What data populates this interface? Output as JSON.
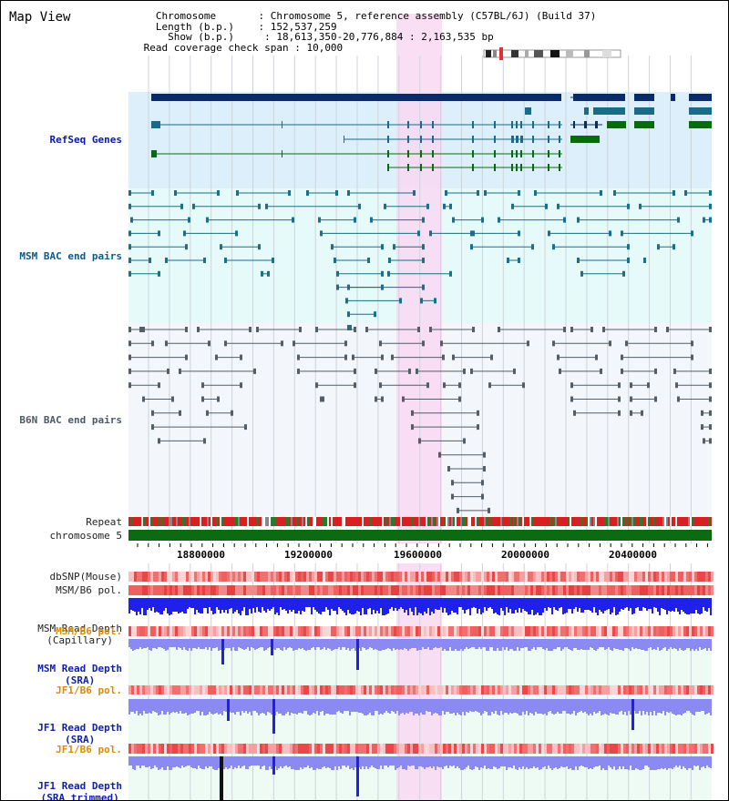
{
  "title": "Map View",
  "header": [
    {
      "key": "Chromosome       ",
      "value": ": Chromosome 5, reference assembly (C57BL/6J) (Build 37)",
      "indent": "   "
    },
    {
      "key": "Length (b.p.)    ",
      "value": ": 152,537,259",
      "indent": "   "
    },
    {
      "key": "Show (b.p.)     ",
      "value": ": 18,613,350-20,776,884 : 2,163,535 bp",
      "indent": "     "
    },
    {
      "key": "Read coverage check span",
      "value": " : 10,000",
      "indent": " "
    }
  ],
  "tracks": {
    "refseq": "RefSeq Genes",
    "msm_bac": "MSM BAC end pairs",
    "b6n_bac": "B6N BAC end pairs",
    "repeat": "Repeat",
    "chromosome": "chromosome 5",
    "dbsnp": "dbSNP(Mouse)",
    "msm_b6_pol_1": "MSM/B6 pol.",
    "msm_read_depth_cap_1": "MSM Read Depth",
    "msm_read_depth_cap_2": "(Capillary)",
    "msm_b6_pol_2": "MSM/B6 pol.",
    "msm_read_depth_sra_1": "MSM Read Depth",
    "msm_read_depth_sra_2": "(SRA)",
    "jf1_b6_pol_1": "JF1/B6 pol.",
    "jf1_read_depth_sra_1": "JF1 Read Depth",
    "jf1_read_depth_sra_2": "(SRA)",
    "jf1_b6_pol_2": "JF1/B6 pol.",
    "jf1_read_depth_trim_1": "JF1 Read Depth",
    "jf1_read_depth_trim_2": "(SRA trimmed)"
  },
  "axis_ticks": [
    "18800000",
    "19200000",
    "19600000",
    "20000000",
    "20400000"
  ],
  "colors": {
    "refseq_bg": "#dceffa",
    "msm_bac_bg": "#e6fafa",
    "b6n_bac_bg": "#f3f6fa",
    "highlight": "#f8d8f2",
    "gene_dark": "#0a2a6a",
    "gene_teal": "#1a6a8a",
    "gene_green": "#0a6a12",
    "bac_teal": "#1c6f86",
    "bac_gray": "#555d66",
    "chromosome_bar": "#0c6a12",
    "snp_red": "#f07070",
    "depth_blue": "#2020ee",
    "depth_lavender": "#8a8af2",
    "lower_bg": "#eefaf4"
  }
}
